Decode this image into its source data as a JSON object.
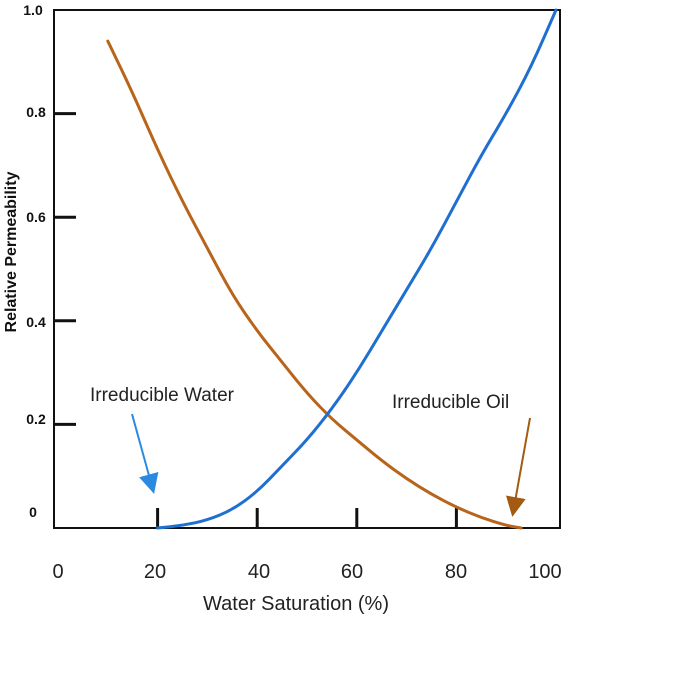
{
  "chart_data": {
    "type": "line",
    "title": "",
    "xlabel": "Water Saturation (%)",
    "ylabel": "Relative Permeability",
    "xlim": [
      0,
      100
    ],
    "ylim": [
      0,
      1.0
    ],
    "x_ticks": [
      "0",
      "20",
      "40",
      "60",
      "80",
      "100"
    ],
    "y_ticks": [
      "0",
      "0.2",
      "0.4",
      "0.6",
      "0.8",
      "1.0"
    ],
    "grid": false,
    "series": [
      {
        "color": "#b8651b",
        "points": [
          [
            10,
            0.94
          ],
          [
            15,
            0.84
          ],
          [
            20,
            0.73
          ],
          [
            25,
            0.63
          ],
          [
            30,
            0.54
          ],
          [
            35,
            0.45
          ],
          [
            40,
            0.38
          ],
          [
            45,
            0.32
          ],
          [
            50,
            0.26
          ],
          [
            55,
            0.21
          ],
          [
            60,
            0.17
          ],
          [
            65,
            0.13
          ],
          [
            70,
            0.095
          ],
          [
            75,
            0.065
          ],
          [
            80,
            0.04
          ],
          [
            85,
            0.02
          ],
          [
            90,
            0.005
          ],
          [
            93,
            0.0
          ]
        ]
      },
      {
        "color": "#1f6fd1",
        "points": [
          [
            20,
            0.0
          ],
          [
            25,
            0.005
          ],
          [
            30,
            0.015
          ],
          [
            35,
            0.035
          ],
          [
            40,
            0.07
          ],
          [
            45,
            0.12
          ],
          [
            50,
            0.17
          ],
          [
            55,
            0.23
          ],
          [
            60,
            0.3
          ],
          [
            65,
            0.38
          ],
          [
            70,
            0.46
          ],
          [
            75,
            0.54
          ],
          [
            80,
            0.63
          ],
          [
            85,
            0.72
          ],
          [
            90,
            0.8
          ],
          [
            95,
            0.89
          ],
          [
            100,
            1.0
          ]
        ]
      }
    ],
    "annotations": [
      {
        "text": "Irreducible Water",
        "x": 20,
        "y": 0.0,
        "color": "#2a8ae0"
      },
      {
        "text": "Irreducible Oil",
        "x": 93,
        "y": 0.0,
        "color": "#a35a12"
      }
    ]
  }
}
